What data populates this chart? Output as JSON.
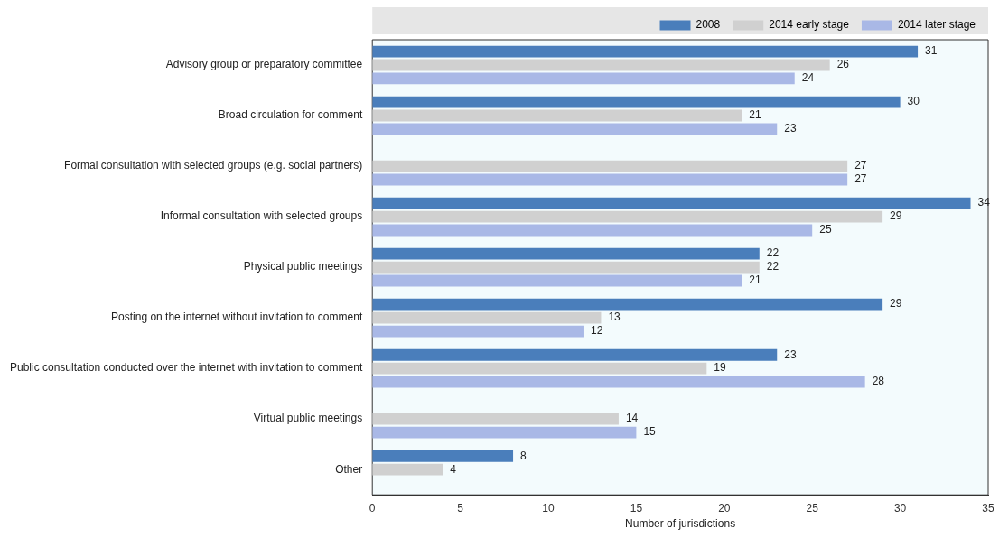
{
  "chart_data": {
    "type": "bar",
    "orientation": "horizontal",
    "xlabel": "Number of jurisdictions",
    "categories": [
      "Advisory group or preparatory committee",
      "Broad circulation for comment",
      "Formal consultation with selected groups (e.g. social partners)",
      "Informal consultation with selected groups",
      "Physical public meetings",
      "Posting on the internet without invitation to comment",
      "Public consultation conducted over the internet with invitation to comment",
      "Virtual public meetings",
      "Other"
    ],
    "series": [
      {
        "name": "2008",
        "color": "#4a7ebb",
        "values": [
          31,
          30,
          null,
          34,
          22,
          29,
          23,
          null,
          8
        ]
      },
      {
        "name": "2014 early stage",
        "color": "#d0d0d0",
        "values": [
          26,
          21,
          27,
          29,
          22,
          13,
          19,
          14,
          4
        ]
      },
      {
        "name": "2014 later stage",
        "color": "#a9b8e6",
        "values": [
          24,
          23,
          27,
          25,
          21,
          12,
          28,
          15,
          null
        ]
      }
    ],
    "xlim": [
      0,
      35
    ],
    "xticks": [
      0,
      5,
      10,
      15,
      20,
      25,
      30,
      35
    ],
    "grid": false,
    "legend": "top",
    "data_labels": true
  }
}
